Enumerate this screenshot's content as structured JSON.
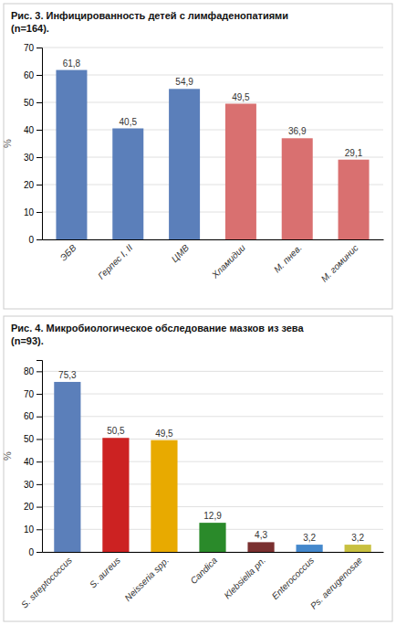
{
  "chart_data": [
    {
      "type": "bar",
      "title": "Рис. 3. Инфицированность детей с лимфаденопатиями",
      "subtitle": "(n=164).",
      "ylabel": "%",
      "categories": [
        "ЭБВ",
        "Герпес I, II",
        "ЦМВ",
        "Хламидии",
        "М. пнев.",
        "М. гоминис"
      ],
      "values": [
        61.8,
        40.5,
        54.9,
        49.5,
        36.9,
        29.1
      ],
      "value_labels": [
        "61,8",
        "40,5",
        "54,9",
        "49,5",
        "36,9",
        "29,1"
      ],
      "colors": [
        "#5b7fba",
        "#5b7fba",
        "#5b7fba",
        "#d97070",
        "#d97070",
        "#d97070"
      ],
      "ylim": [
        0,
        70
      ],
      "yticks": [
        0,
        10,
        20,
        30,
        40,
        50,
        60,
        70
      ],
      "grid": true,
      "data_labels": true
    },
    {
      "type": "bar",
      "title": "Рис. 4. Микробиологическое обследование мазков из зева",
      "subtitle": "(n=93).",
      "ylabel": "%",
      "categories": [
        "S. streptococcus",
        "S. aureus",
        "Neisseria spp.",
        "Candica",
        "Klebsiella pn.",
        "Enterococcus",
        "Ps. aerugenosae"
      ],
      "values": [
        75.3,
        50.5,
        49.5,
        12.9,
        4.3,
        3.2,
        3.2
      ],
      "value_labels": [
        "75,3",
        "50,5",
        "49,5",
        "12,9",
        "4,3",
        "3,2",
        "3,2"
      ],
      "colors": [
        "#5b7fba",
        "#cc2222",
        "#e8aa00",
        "#2a8a2a",
        "#7a3030",
        "#4488cc",
        "#c8c040"
      ],
      "ylim": [
        0,
        85
      ],
      "yticks": [
        0,
        10,
        20,
        30,
        40,
        50,
        60,
        70,
        80
      ],
      "grid": true,
      "data_labels": true
    }
  ]
}
